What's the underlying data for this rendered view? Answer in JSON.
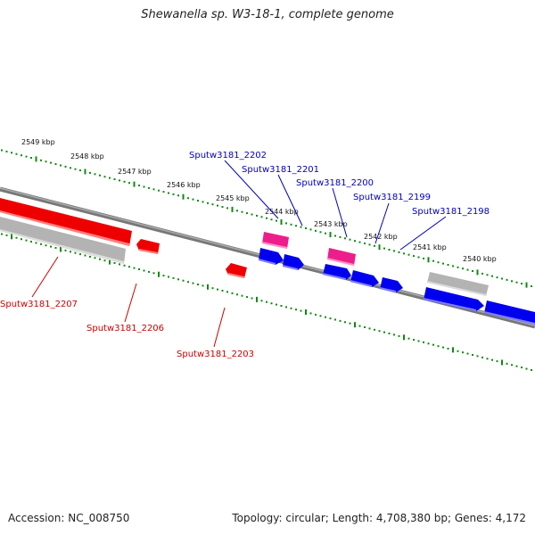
{
  "title": "Shewanella sp. W3-18-1, complete genome",
  "accession": "Accession: NC_008750",
  "topology": "Topology: circular; Length: 4,708,380 bp; Genes: 4,172",
  "colors": {
    "forward_gene": "#0000ee",
    "reverse_gene": "#ee0000",
    "rna_gene": "#ee1d8c",
    "pseudo_gene": "#aaaaaa",
    "backbone": "#777777",
    "ruler_tick": "#118811",
    "forward_label": "#0000bb",
    "reverse_label": "#cc0000"
  },
  "ruler_labels": [
    "2549 kbp",
    "2548 kbp",
    "2547 kbp",
    "2546 kbp",
    "2545 kbp",
    "2544 kbp",
    "2543 kbp",
    "2542 kbp",
    "2541 kbp",
    "2540 kbp"
  ],
  "forward_labels": [
    "Sputw3181_2202",
    "Sputw3181_2201",
    "Sputw3181_2200",
    "Sputw3181_2199",
    "Sputw3181_2198"
  ],
  "reverse_labels": [
    "Sputw3181_2207",
    "Sputw3181_2206",
    "Sputw3181_2203"
  ]
}
